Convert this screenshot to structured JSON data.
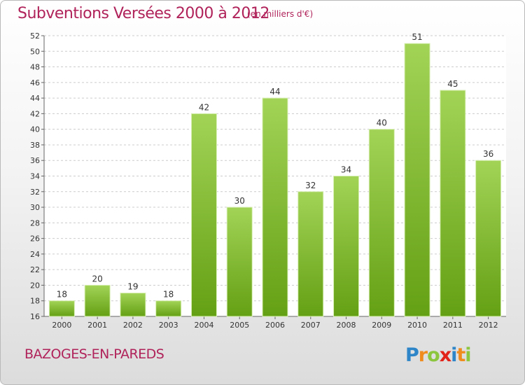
{
  "header": {
    "title": "Subventions Versées 2000 à 2012",
    "subtitle": "(en milliers d'€)"
  },
  "footer": {
    "place": "BAZOGES-EN-PAREDS",
    "logo_text": "Proxiti"
  },
  "colors": {
    "title": "#b0235a",
    "bar_light": "#a2d356",
    "bar_dark": "#64a014",
    "grid": "#cccccc"
  },
  "chart_data": {
    "type": "bar",
    "title": "Subventions Versées 2000 à 2012",
    "subtitle": "(en milliers d'€)",
    "categories": [
      "2000",
      "2001",
      "2002",
      "2003",
      "2004",
      "2005",
      "2006",
      "2007",
      "2008",
      "2009",
      "2010",
      "2011",
      "2012"
    ],
    "values": [
      18,
      20,
      19,
      18,
      42,
      30,
      44,
      32,
      34,
      40,
      51,
      45,
      36
    ],
    "ylim": [
      16,
      52
    ],
    "yticks": [
      16,
      18,
      20,
      22,
      24,
      26,
      28,
      30,
      32,
      34,
      36,
      38,
      40,
      42,
      44,
      46,
      48,
      50,
      52
    ],
    "grid": "horizontal dashed",
    "legend": "none"
  }
}
